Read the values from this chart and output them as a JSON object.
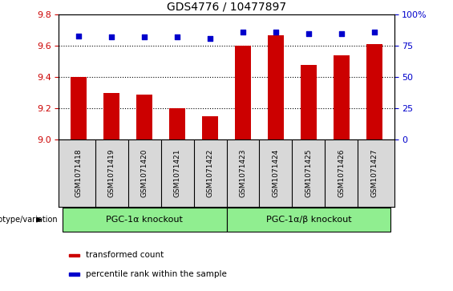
{
  "title": "GDS4776 / 10477897",
  "samples": [
    "GSM1071418",
    "GSM1071419",
    "GSM1071420",
    "GSM1071421",
    "GSM1071422",
    "GSM1071423",
    "GSM1071424",
    "GSM1071425",
    "GSM1071426",
    "GSM1071427"
  ],
  "bar_values": [
    9.4,
    9.3,
    9.29,
    9.2,
    9.15,
    9.6,
    9.67,
    9.48,
    9.54,
    9.61
  ],
  "percentile_values": [
    83,
    82,
    82,
    82,
    81,
    86,
    86,
    85,
    85,
    86
  ],
  "bar_color": "#cc0000",
  "dot_color": "#0000cc",
  "ylim_left": [
    9.0,
    9.8
  ],
  "ylim_right": [
    0,
    100
  ],
  "yticks_left": [
    9.0,
    9.2,
    9.4,
    9.6,
    9.8
  ],
  "yticks_right": [
    0,
    25,
    50,
    75,
    100
  ],
  "grid_values": [
    9.2,
    9.4,
    9.6
  ],
  "group1_label": "PGC-1α knockout",
  "group2_label": "PGC-1α/β knockout",
  "group1_indices": [
    0,
    1,
    2,
    3,
    4
  ],
  "group2_indices": [
    5,
    6,
    7,
    8,
    9
  ],
  "group1_color": "#90ee90",
  "group2_color": "#90ee90",
  "bar_width": 0.5,
  "legend_bar_label": "transformed count",
  "legend_dot_label": "percentile rank within the sample",
  "genotype_label": "genotype/variation",
  "tick_color_left": "#cc0000",
  "tick_color_right": "#0000cc",
  "background_color": "#d8d8d8"
}
